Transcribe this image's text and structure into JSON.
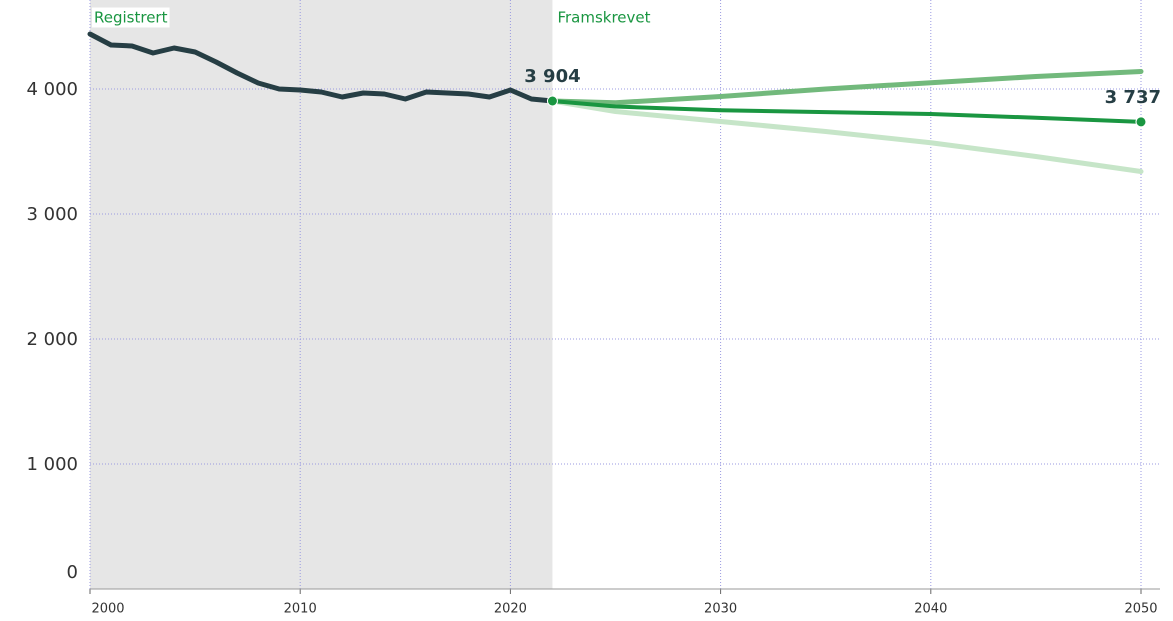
{
  "chart_data": {
    "type": "line",
    "xlim": [
      2000,
      2050
    ],
    "xticks": [
      2000,
      2010,
      2020,
      2030,
      2040,
      2050
    ],
    "ylim": [
      0,
      4700
    ],
    "yticks": [
      {
        "value": 0,
        "label": "0"
      },
      {
        "value": 1000,
        "label": "1 000"
      },
      {
        "value": 2000,
        "label": "2 000"
      },
      {
        "value": 3000,
        "label": "3 000"
      },
      {
        "value": 4000,
        "label": "4 000"
      }
    ],
    "grid": true,
    "shaded_range": [
      2000,
      2022
    ],
    "shaded_color": "#e6e6e6",
    "region_labels": [
      "Registrert",
      "Framskrevet"
    ],
    "series": [
      {
        "color": "#263e44",
        "width": 5,
        "x": [
          2000,
          2001,
          2002,
          2003,
          2004,
          2005,
          2006,
          2007,
          2008,
          2009,
          2010,
          2011,
          2012,
          2013,
          2014,
          2015,
          2016,
          2017,
          2018,
          2019,
          2020,
          2021,
          2022
        ],
        "values": [
          4440,
          4352,
          4344,
          4288,
          4328,
          4296,
          4216,
          4128,
          4048,
          4000,
          3992,
          3976,
          3936,
          3968,
          3960,
          3920,
          3976,
          3968,
          3960,
          3936,
          3992,
          3920,
          3904
        ]
      },
      {
        "color": "#c6e5c8",
        "width": 5,
        "x": [
          2022,
          2025,
          2030,
          2035,
          2040,
          2045,
          2050
        ],
        "values": [
          3904,
          3820,
          3740,
          3660,
          3570,
          3460,
          3340
        ]
      },
      {
        "color": "#72b97c",
        "width": 5,
        "x": [
          2022,
          2025,
          2030,
          2035,
          2040,
          2045,
          2050
        ],
        "values": [
          3904,
          3890,
          3940,
          4000,
          4050,
          4100,
          4140
        ]
      },
      {
        "color": "#1a9641",
        "width": 4,
        "x": [
          2022,
          2025,
          2030,
          2035,
          2040,
          2045,
          2050
        ],
        "values": [
          3904,
          3860,
          3830,
          3815,
          3800,
          3770,
          3737
        ]
      }
    ],
    "annotations": [
      {
        "x": 2022,
        "value": 3904,
        "label": "3 904"
      },
      {
        "x": 2050,
        "value": 3737,
        "label": "3 737"
      }
    ]
  }
}
